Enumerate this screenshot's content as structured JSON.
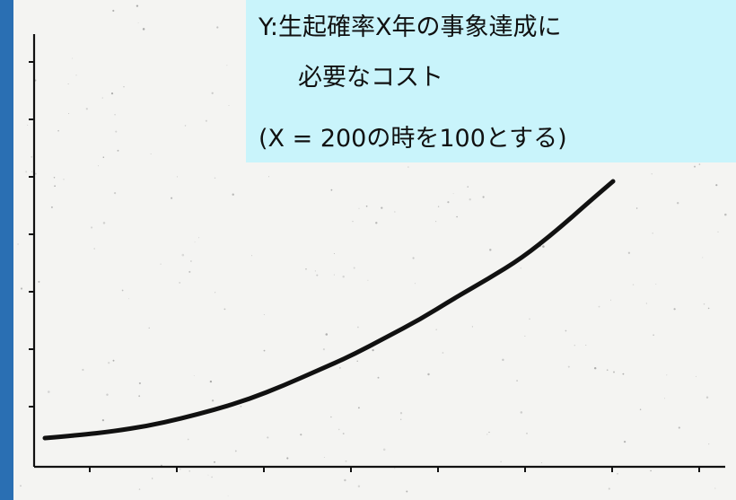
{
  "chart_data": {
    "type": "line",
    "title": "",
    "xlabel": "",
    "ylabel": "Y:生起確率X年の事象達成に必要なコスト",
    "annotations": [
      "Y:生起確率X年の事象達成に",
      "必要なコスト",
      "(X = 200の時を100とする)"
    ],
    "grid": false,
    "x_ticks": 8,
    "y_ticks": 7,
    "curve_color": "#111111",
    "series": [
      {
        "values": [
          [
            0.0,
            0.0
          ],
          [
            0.06,
            0.02
          ],
          [
            0.12,
            0.045
          ],
          [
            0.18,
            0.08
          ],
          [
            0.24,
            0.13
          ],
          [
            0.3,
            0.19
          ],
          [
            0.36,
            0.26
          ],
          [
            0.42,
            0.35
          ],
          [
            0.48,
            0.45
          ],
          [
            0.54,
            0.55
          ],
          [
            0.6,
            0.67
          ],
          [
            0.66,
            0.79
          ],
          [
            0.72,
            0.93
          ],
          [
            0.78,
            1.06
          ],
          [
            0.84,
            1.2
          ],
          [
            0.9,
            1.38
          ],
          [
            0.96,
            1.58
          ],
          [
            1.0,
            1.71
          ]
        ]
      }
    ]
  },
  "colors": {
    "left_bar": "#2a6fb3",
    "caption_bg": "#c9f4fb",
    "paper": "#f4f4f2"
  },
  "caption": {
    "line1": "Y:生起確率X年の事象達成に",
    "line2": "必要なコスト",
    "line3": "(X = 200の時を100とする)"
  }
}
